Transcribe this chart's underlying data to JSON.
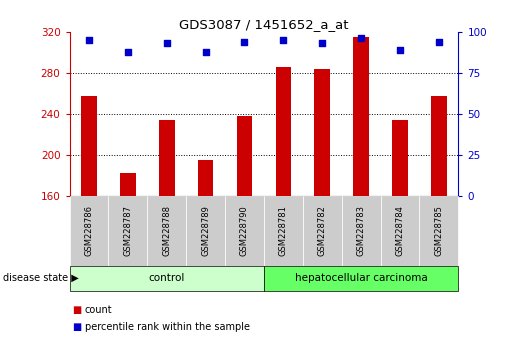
{
  "title": "GDS3087 / 1451652_a_at",
  "samples": [
    "GSM228786",
    "GSM228787",
    "GSM228788",
    "GSM228789",
    "GSM228790",
    "GSM228781",
    "GSM228782",
    "GSM228783",
    "GSM228784",
    "GSM228785"
  ],
  "counts": [
    258,
    183,
    234,
    195,
    238,
    286,
    284,
    315,
    234,
    258
  ],
  "percentiles": [
    95,
    88,
    93,
    88,
    94,
    95,
    93,
    96,
    89,
    94
  ],
  "groups": [
    "control",
    "control",
    "control",
    "control",
    "control",
    "hepatocellular carcinoma",
    "hepatocellular carcinoma",
    "hepatocellular carcinoma",
    "hepatocellular carcinoma",
    "hepatocellular carcinoma"
  ],
  "bar_color": "#cc0000",
  "dot_color": "#0000cc",
  "ylim_left": [
    160,
    320
  ],
  "ylim_right": [
    0,
    100
  ],
  "yticks_left": [
    160,
    200,
    240,
    280,
    320
  ],
  "yticks_right": [
    0,
    25,
    50,
    75,
    100
  ],
  "grid_values": [
    200,
    240,
    280
  ],
  "control_color": "#ccffcc",
  "carcinoma_color": "#66ff66",
  "label_box_color": "#cccccc",
  "legend_count_color": "#cc0000",
  "legend_dot_color": "#0000cc",
  "disease_state_label": "disease state",
  "control_label": "control",
  "carcinoma_label": "hepatocellular carcinoma",
  "legend_count": "count",
  "legend_percentile": "percentile rank within the sample",
  "bar_width": 0.4
}
